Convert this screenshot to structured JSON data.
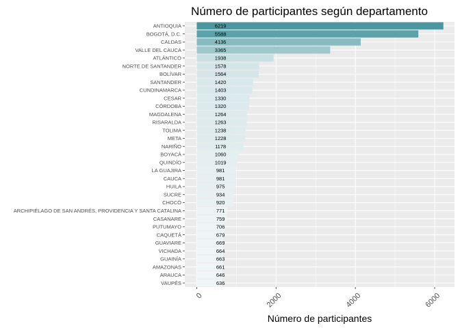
{
  "chart_data": {
    "type": "bar",
    "orientation": "horizontal",
    "title": "Número de participantes según departamento",
    "xlabel": "Número de participantes",
    "ylabel": "",
    "xlim": [
      -300,
      6500
    ],
    "x_ticks": [
      0,
      2000,
      4000,
      6000
    ],
    "x_tick_labels": [
      "0",
      "2000",
      "4000",
      "6000"
    ],
    "grid": true,
    "panel_background": "#ebebeb",
    "gridline_color": "#ffffff",
    "bar_color_low": "#f0f6f7",
    "bar_color_high": "#4a979f",
    "categories": [
      "ANTIOQUIA",
      "BOGOTÁ, D.C.",
      "CALDAS",
      "VALLE DEL CAUCA",
      "ATLÁNTICO",
      "NORTE DE SANTANDER",
      "BOLÍVAR",
      "SANTANDER",
      "CUNDINAMARCA",
      "CESAR",
      "CÓRDOBA",
      "MAGDALENA",
      "RISARALDA",
      "TOLIMA",
      "META",
      "NARIÑO",
      "BOYACÁ",
      "QUINDÍO",
      "LA GUAJIRA",
      "CAUCA",
      "HUILA",
      "SUCRE",
      "CHOCÓ",
      "ARCHIPIÉLAGO DE SAN ANDRÉS, PROVIDENCIA Y SANTA CATALINA",
      "CASANARE",
      "PUTUMAYO",
      "CAQUETÁ",
      "GUAVIARE",
      "VICHADA",
      "GUAINÍA",
      "AMAZONAS",
      "ARAUCA",
      "VAUPÉS"
    ],
    "values": [
      6219,
      5588,
      4136,
      3365,
      1938,
      1578,
      1564,
      1420,
      1403,
      1330,
      1320,
      1264,
      1263,
      1238,
      1228,
      1178,
      1060,
      1019,
      981,
      981,
      975,
      934,
      920,
      771,
      759,
      706,
      679,
      669,
      664,
      663,
      661,
      646,
      636
    ],
    "data_labels": [
      "6219",
      "5588",
      "4136",
      "3365",
      "1938",
      "1578",
      "1564",
      "1420",
      "1403",
      "1330",
      "1320",
      "1264",
      "1263",
      "1238",
      "1228",
      "1178",
      "1060",
      "1019",
      "981",
      "981",
      "975",
      "934",
      "920",
      "771",
      "759",
      "706",
      "679",
      "669",
      "664",
      "663",
      "661",
      "646",
      "636"
    ],
    "data_label_position": 600
  }
}
